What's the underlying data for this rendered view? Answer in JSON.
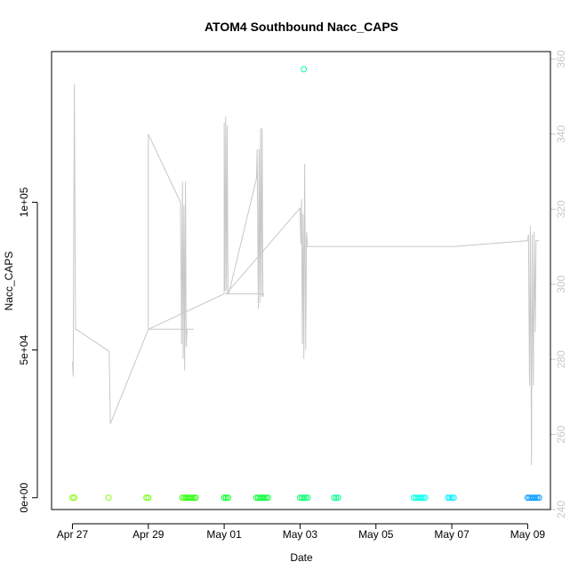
{
  "chart_data": {
    "type": "line",
    "title": "ATOM4 Southbound Nacc_CAPS",
    "xlabel": "Date",
    "ylabel": "Nacc_CAPS",
    "x_ticks": [
      "Apr 27",
      "Apr 29",
      "May 01",
      "May 03",
      "May 05",
      "May 07",
      "May 09"
    ],
    "x_tick_days": [
      0,
      2,
      4,
      6,
      8,
      10,
      12
    ],
    "xlim_days": [
      -0.55,
      12.6
    ],
    "y_ticks": [
      "0e+00",
      "5e+04",
      "1e+05"
    ],
    "y_tick_values": [
      0,
      50000,
      100000
    ],
    "ylim": [
      -4000,
      151000
    ],
    "y2_ticks": [
      "240",
      "260",
      "280",
      "300",
      "320",
      "340",
      "360"
    ],
    "y2_tick_values": [
      240,
      260,
      280,
      300,
      320,
      340,
      360
    ],
    "y2lim": [
      240,
      362
    ],
    "line_color": "#c8c8c8",
    "series": [
      {
        "type": "line",
        "color": "#c8c8c8",
        "x_days": [
          0.0,
          0.02,
          0.05,
          0.08,
          0.1,
          0.97,
          1.0,
          1.0,
          2.0,
          2.0,
          2.85,
          2.88,
          2.9,
          2.92,
          2.94,
          2.96,
          2.98,
          3.0,
          3.02,
          3.04,
          3.07,
          3.1,
          3.12,
          3.15,
          3.17,
          3.2,
          3.2,
          2.05,
          2.0,
          4.0,
          4.0,
          4.02,
          4.04,
          4.06,
          4.08,
          4.1,
          4.12,
          4.12,
          4.85,
          4.87,
          4.9,
          4.92,
          4.94,
          4.96,
          4.98,
          5.0,
          5.02,
          5.04,
          5.05,
          5.05,
          4.05,
          4.05,
          6.0,
          6.02,
          6.04,
          6.06,
          6.08,
          6.1,
          6.12,
          6.15,
          6.17,
          6.2,
          6.2,
          6.9,
          6.95,
          6.97,
          7.0,
          7.0,
          6.15,
          7.0,
          6.1,
          10.0,
          10.0,
          10.0,
          9.0,
          9.02,
          9.05,
          9.07,
          9.1,
          9.12,
          9.15,
          9.17,
          9.2,
          9.22,
          9.25,
          9.28,
          9.3,
          9.35,
          9.9,
          9.92,
          9.95,
          9.97,
          10.0,
          10.05,
          10.05,
          12.0,
          12.02,
          12.05,
          12.07,
          12.1,
          12.12,
          12.15,
          12.17,
          12.2,
          12.22,
          12.25,
          12.3
        ],
        "values": [
          46000,
          41000,
          140000,
          57000,
          57000,
          49500,
          25000,
          25000,
          57000,
          123000,
          100000,
          52000,
          107000,
          47000,
          99000,
          43000,
          107000,
          51000,
          57000,
          57000,
          57000,
          57000,
          57000,
          57000,
          57000,
          57000,
          57000,
          57000,
          57000,
          69000,
          127000,
          70000,
          129000,
          70000,
          126000,
          69000,
          69000,
          69000,
          108000,
          118000,
          64000,
          118000,
          66000,
          125000,
          68000,
          125000,
          68000,
          69000,
          69000,
          69000,
          69000,
          69000,
          98000,
          86000,
          101000,
          52000,
          96000,
          47000,
          113000,
          50000,
          90000,
          85000,
          85000,
          85000,
          85000,
          85000,
          85000,
          85000,
          85000,
          85000,
          85000,
          85000,
          85000,
          85000,
          85000,
          85000,
          85000,
          85000,
          85000,
          85000,
          85000,
          85000,
          85000,
          85000,
          85000,
          85000,
          85000,
          85000,
          85000,
          85000,
          85000,
          85000,
          85000,
          85000,
          85000,
          87000,
          89000,
          38000,
          92000,
          11000,
          89000,
          38000,
          90000,
          56000,
          87000,
          87000,
          87000
        ]
      },
      {
        "type": "scatter",
        "name": "",
        "x_days": [
          0.0,
          0.05,
          0.95,
          1.95,
          2.0,
          2.9,
          2.95,
          3.0,
          3.05,
          3.1,
          3.15,
          3.2,
          3.25,
          4.0,
          4.05,
          4.1,
          4.85,
          4.9,
          4.95,
          5.0,
          5.05,
          5.1,
          5.15,
          6.0,
          6.05,
          6.1,
          6.15,
          6.2,
          6.1,
          6.9,
          6.95,
          7.0,
          9.0,
          9.05,
          9.1,
          9.15,
          9.2,
          9.25,
          9.3,
          9.9,
          9.95,
          10.0,
          10.05,
          12.0,
          12.05,
          12.1,
          12.15,
          12.2,
          12.25,
          12.3
        ],
        "values": [
          0,
          0,
          0,
          0,
          0,
          0,
          0,
          0,
          0,
          0,
          0,
          0,
          0,
          0,
          0,
          0,
          0,
          0,
          0,
          0,
          0,
          0,
          0,
          0,
          0,
          0,
          0,
          0,
          145000,
          0,
          0,
          0,
          0,
          0,
          0,
          0,
          0,
          0,
          0,
          0,
          0,
          0,
          0,
          0,
          0,
          0,
          0,
          0,
          0,
          0
        ],
        "colors": [
          "#80ff00",
          "#80ff00",
          "#80ff00",
          "#66ff00",
          "#66ff00",
          "#33ff00",
          "#33ff00",
          "#2aff00",
          "#22ff00",
          "#22ff00",
          "#22ff00",
          "#22ff00",
          "#22ff00",
          "#00ff22",
          "#00ff22",
          "#00ff22",
          "#00ff33",
          "#00ff33",
          "#00ff33",
          "#00ff33",
          "#00ff33",
          "#00ff33",
          "#00ff33",
          "#00ff66",
          "#00ff66",
          "#00ff66",
          "#00ff77",
          "#00ff77",
          "#00ffaa",
          "#00ff88",
          "#00ff88",
          "#00ff99",
          "#00ffdd",
          "#00ffdd",
          "#00ffdd",
          "#00ffee",
          "#00ffee",
          "#00ffee",
          "#00ffee",
          "#00f0ff",
          "#00f0ff",
          "#00f0ff",
          "#00f0ff",
          "#0099ff",
          "#0099ff",
          "#0099ff",
          "#0099ff",
          "#0099ff",
          "#0099ff",
          "#0099ff"
        ]
      }
    ]
  }
}
